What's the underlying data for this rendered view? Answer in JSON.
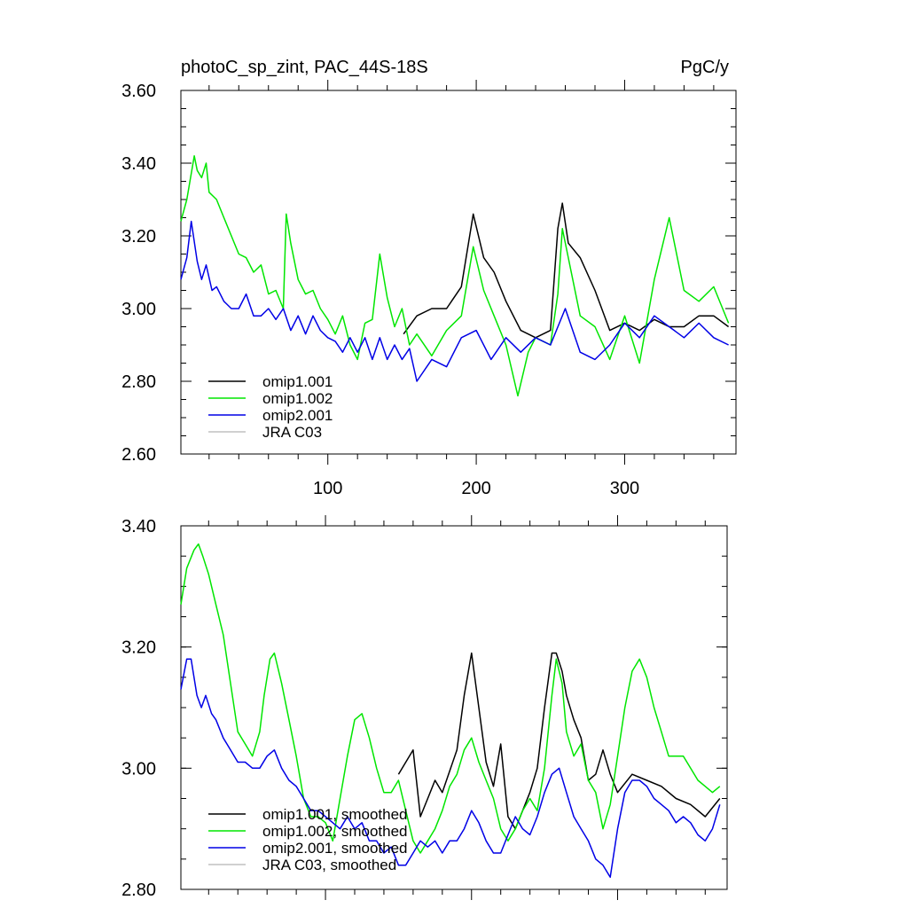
{
  "chart_data": [
    {
      "type": "line",
      "title": "photoC_sp_zint, PAC_44S-18S",
      "units": "PgC/y",
      "xlim": [
        1,
        375
      ],
      "ylim": [
        2.6,
        3.6
      ],
      "xticks": [
        100,
        200,
        300
      ],
      "yticks": [
        2.6,
        2.8,
        3.0,
        3.2,
        3.4,
        3.6
      ],
      "ytick_labels": [
        "2.60",
        "2.80",
        "3.00",
        "3.20",
        "3.40",
        "3.60"
      ],
      "xtick_labels": [
        "100",
        "200",
        "300"
      ],
      "legend_position": "bottom-left",
      "series": [
        {
          "name": "omip1.001",
          "color": "#000000",
          "x": [
            151,
            160,
            170,
            180,
            190,
            198,
            205,
            212,
            220,
            230,
            240,
            250,
            255,
            258,
            262,
            270,
            280,
            290,
            300,
            310,
            320,
            330,
            340,
            350,
            360,
            370
          ],
          "values": [
            2.93,
            2.98,
            3.0,
            3.0,
            3.06,
            3.26,
            3.14,
            3.1,
            3.02,
            2.94,
            2.92,
            2.94,
            3.22,
            3.29,
            3.18,
            3.14,
            3.05,
            2.94,
            2.96,
            2.94,
            2.97,
            2.95,
            2.95,
            2.98,
            2.98,
            2.95
          ]
        },
        {
          "name": "omip1.002",
          "color": "#00e600",
          "x": [
            1,
            5,
            10,
            12,
            15,
            18,
            20,
            25,
            30,
            35,
            40,
            45,
            50,
            55,
            60,
            65,
            70,
            72,
            75,
            80,
            85,
            90,
            95,
            100,
            105,
            110,
            115,
            120,
            125,
            130,
            135,
            140,
            145,
            150,
            155,
            160,
            170,
            180,
            190,
            198,
            205,
            212,
            220,
            228,
            235,
            240,
            250,
            255,
            258,
            262,
            270,
            280,
            290,
            300,
            310,
            320,
            330,
            340,
            350,
            360,
            370
          ],
          "values": [
            3.24,
            3.3,
            3.42,
            3.38,
            3.36,
            3.4,
            3.32,
            3.3,
            3.25,
            3.2,
            3.15,
            3.14,
            3.1,
            3.12,
            3.04,
            3.05,
            3.0,
            3.26,
            3.18,
            3.08,
            3.04,
            3.05,
            3.0,
            2.97,
            2.93,
            2.98,
            2.9,
            2.86,
            2.96,
            2.97,
            3.15,
            3.03,
            2.95,
            3.0,
            2.9,
            2.93,
            2.87,
            2.94,
            2.98,
            3.17,
            3.05,
            2.98,
            2.9,
            2.76,
            2.88,
            2.92,
            2.9,
            3.04,
            3.22,
            3.14,
            2.98,
            2.95,
            2.86,
            2.98,
            2.85,
            3.08,
            3.25,
            3.05,
            3.02,
            3.06,
            2.96
          ]
        },
        {
          "name": "omip2.001",
          "color": "#0000e6",
          "x": [
            1,
            5,
            8,
            12,
            15,
            18,
            22,
            25,
            30,
            35,
            40,
            45,
            50,
            55,
            60,
            65,
            70,
            75,
            80,
            85,
            90,
            95,
            100,
            105,
            110,
            115,
            120,
            125,
            130,
            135,
            140,
            145,
            150,
            155,
            160,
            170,
            180,
            190,
            200,
            210,
            220,
            230,
            240,
            250,
            260,
            270,
            280,
            290,
            300,
            310,
            320,
            330,
            340,
            350,
            360,
            370
          ],
          "values": [
            3.08,
            3.14,
            3.24,
            3.13,
            3.08,
            3.12,
            3.05,
            3.06,
            3.02,
            3.0,
            3.0,
            3.04,
            2.98,
            2.98,
            3.0,
            2.97,
            3.0,
            2.94,
            2.98,
            2.93,
            2.98,
            2.94,
            2.92,
            2.91,
            2.88,
            2.92,
            2.88,
            2.92,
            2.86,
            2.92,
            2.86,
            2.9,
            2.86,
            2.89,
            2.8,
            2.86,
            2.84,
            2.92,
            2.94,
            2.86,
            2.92,
            2.88,
            2.92,
            2.9,
            3.0,
            2.88,
            2.86,
            2.9,
            2.96,
            2.92,
            2.98,
            2.95,
            2.92,
            2.96,
            2.92,
            2.9
          ]
        },
        {
          "name": "JRA C03",
          "color": "#c0c0c0",
          "x": [],
          "values": []
        }
      ]
    },
    {
      "type": "line",
      "title": "",
      "xlim": [
        1,
        375
      ],
      "ylim": [
        2.8,
        3.4
      ],
      "xticks": [
        100,
        200,
        300
      ],
      "yticks": [
        2.8,
        3.0,
        3.2,
        3.4
      ],
      "ytick_labels": [
        "2.80",
        "3.00",
        "3.20",
        "3.40"
      ],
      "legend_position": "bottom-left",
      "series": [
        {
          "name": "omip1.001, smoothed",
          "color": "#000000",
          "x": [
            150,
            160,
            165,
            170,
            175,
            180,
            190,
            195,
            200,
            205,
            210,
            215,
            220,
            225,
            230,
            235,
            240,
            245,
            250,
            255,
            258,
            262,
            265,
            270,
            275,
            280,
            285,
            290,
            295,
            300,
            310,
            320,
            330,
            340,
            350,
            360,
            370
          ],
          "values": [
            2.99,
            3.03,
            2.92,
            2.95,
            2.98,
            2.96,
            3.03,
            3.12,
            3.19,
            3.1,
            3.01,
            2.97,
            3.04,
            2.92,
            2.9,
            2.93,
            2.96,
            3.0,
            3.1,
            3.19,
            3.19,
            3.16,
            3.12,
            3.08,
            3.05,
            2.98,
            2.99,
            3.03,
            2.99,
            2.96,
            2.99,
            2.98,
            2.97,
            2.95,
            2.94,
            2.92,
            2.95
          ]
        },
        {
          "name": "omip1.002, smoothed",
          "color": "#00e600",
          "x": [
            1,
            5,
            10,
            13,
            16,
            20,
            25,
            30,
            35,
            40,
            45,
            50,
            55,
            58,
            62,
            65,
            70,
            75,
            80,
            85,
            90,
            95,
            100,
            105,
            110,
            115,
            120,
            125,
            130,
            135,
            140,
            145,
            150,
            155,
            160,
            165,
            170,
            175,
            180,
            185,
            190,
            195,
            200,
            205,
            210,
            215,
            220,
            225,
            230,
            235,
            240,
            245,
            250,
            255,
            258,
            262,
            265,
            270,
            275,
            280,
            285,
            290,
            295,
            300,
            305,
            310,
            315,
            320,
            325,
            330,
            335,
            340,
            345,
            350,
            355,
            360,
            365,
            370
          ],
          "values": [
            3.27,
            3.33,
            3.36,
            3.37,
            3.35,
            3.32,
            3.27,
            3.22,
            3.14,
            3.06,
            3.04,
            3.02,
            3.06,
            3.12,
            3.18,
            3.19,
            3.14,
            3.08,
            3.02,
            2.95,
            2.92,
            2.92,
            2.91,
            2.88,
            2.95,
            3.02,
            3.08,
            3.09,
            3.05,
            3.0,
            2.96,
            2.96,
            2.98,
            2.93,
            2.88,
            2.86,
            2.88,
            2.9,
            2.93,
            2.97,
            2.99,
            3.03,
            3.05,
            3.01,
            2.98,
            2.95,
            2.9,
            2.88,
            2.9,
            2.93,
            2.95,
            2.93,
            3.0,
            3.12,
            3.18,
            3.14,
            3.06,
            3.02,
            3.04,
            2.98,
            2.96,
            2.9,
            2.94,
            3.02,
            3.1,
            3.16,
            3.18,
            3.15,
            3.1,
            3.06,
            3.02,
            3.02,
            3.02,
            3.0,
            2.98,
            2.97,
            2.96,
            2.97
          ]
        },
        {
          "name": "omip2.001, smoothed",
          "color": "#0000e6",
          "x": [
            1,
            5,
            8,
            12,
            15,
            18,
            22,
            25,
            30,
            35,
            40,
            45,
            50,
            55,
            60,
            65,
            70,
            75,
            80,
            85,
            90,
            95,
            100,
            105,
            110,
            115,
            120,
            125,
            130,
            135,
            140,
            145,
            150,
            155,
            160,
            165,
            170,
            175,
            180,
            185,
            190,
            195,
            200,
            205,
            210,
            215,
            220,
            225,
            230,
            235,
            240,
            245,
            250,
            255,
            260,
            265,
            270,
            275,
            280,
            285,
            290,
            295,
            300,
            305,
            310,
            315,
            320,
            325,
            330,
            335,
            340,
            345,
            350,
            355,
            360,
            365,
            370
          ],
          "values": [
            3.13,
            3.18,
            3.18,
            3.12,
            3.1,
            3.12,
            3.09,
            3.08,
            3.05,
            3.03,
            3.01,
            3.01,
            3.0,
            3.0,
            3.02,
            3.03,
            3.0,
            2.98,
            2.97,
            2.95,
            2.93,
            2.93,
            2.92,
            2.91,
            2.9,
            2.92,
            2.9,
            2.91,
            2.88,
            2.88,
            2.86,
            2.87,
            2.84,
            2.84,
            2.86,
            2.88,
            2.87,
            2.88,
            2.86,
            2.88,
            2.88,
            2.9,
            2.93,
            2.91,
            2.88,
            2.86,
            2.86,
            2.89,
            2.92,
            2.9,
            2.89,
            2.92,
            2.96,
            2.99,
            3.0,
            2.96,
            2.92,
            2.9,
            2.88,
            2.85,
            2.84,
            2.82,
            2.9,
            2.96,
            2.98,
            2.98,
            2.97,
            2.95,
            2.94,
            2.93,
            2.91,
            2.92,
            2.91,
            2.89,
            2.88,
            2.9,
            2.94
          ]
        },
        {
          "name": "JRA C03, smoothed",
          "color": "#c0c0c0",
          "x": [],
          "values": []
        }
      ]
    }
  ]
}
